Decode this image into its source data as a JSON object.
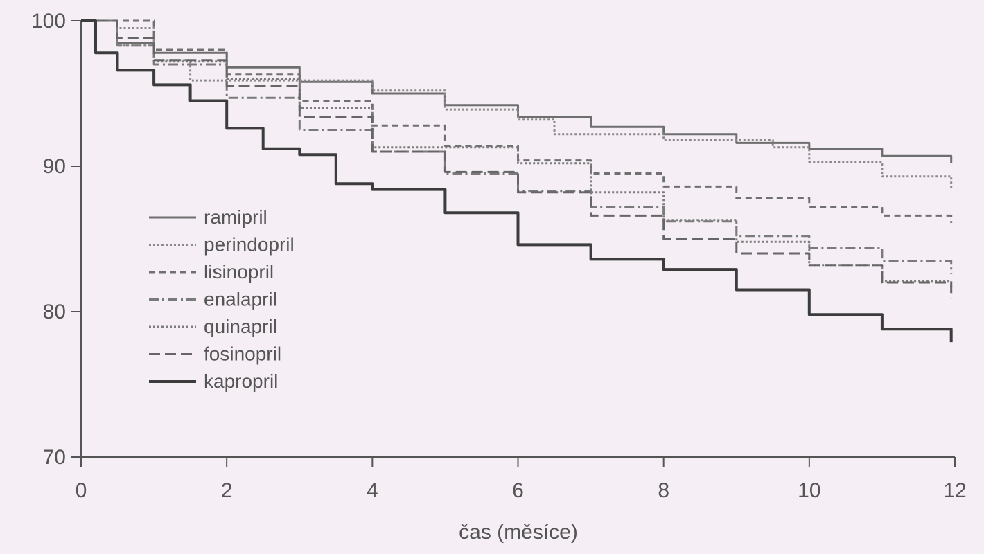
{
  "chart_data": {
    "type": "line",
    "title": "",
    "xlabel": "čas (měsíce)",
    "ylabel": "",
    "xlim": [
      0,
      12
    ],
    "ylim": [
      70,
      100
    ],
    "x_ticks": [
      0,
      2,
      4,
      6,
      8,
      10,
      12
    ],
    "y_ticks": [
      70,
      80,
      90,
      100
    ],
    "x_tick_labels": [
      "0",
      "2",
      "4",
      "6",
      "8",
      "10",
      "12"
    ],
    "y_tick_labels": [
      "70",
      "80",
      "90",
      "100"
    ],
    "grid": false,
    "legend_position": "left-middle",
    "series": [
      {
        "name": "ramipril",
        "style": "solid",
        "width": 3,
        "color": "#6e6e6e",
        "x": [
          0,
          0.5,
          1,
          2,
          3,
          4,
          5,
          6,
          7,
          8,
          9,
          10,
          11,
          11.95
        ],
        "y": [
          100,
          98.5,
          97.8,
          96.8,
          95.8,
          95,
          94.2,
          93.4,
          92.7,
          92.2,
          91.6,
          91.2,
          90.7,
          90.2
        ]
      },
      {
        "name": "perindopril",
        "style": "dotted",
        "width": 3,
        "color": "#8a8a8a",
        "x": [
          0,
          0.5,
          1,
          1.5,
          2,
          3,
          4,
          5,
          6,
          6.5,
          8,
          9.5,
          10,
          11,
          11.95
        ],
        "y": [
          100,
          99.5,
          97.3,
          95.9,
          95.9,
          95.9,
          95.2,
          93.9,
          93.2,
          92.2,
          91.8,
          91.3,
          90.3,
          89.3,
          88.4
        ]
      },
      {
        "name": "lisinopril",
        "style": "dashed-short",
        "width": 3,
        "color": "#707070",
        "x": [
          0,
          1,
          2,
          3,
          4,
          5,
          6,
          7,
          8,
          9,
          10,
          11,
          11.95
        ],
        "y": [
          100,
          98,
          96.3,
          94.5,
          92.8,
          91.4,
          90.4,
          89.5,
          88.6,
          87.8,
          87.2,
          86.6,
          86.1
        ]
      },
      {
        "name": "enalapril",
        "style": "dashdot",
        "width": 3,
        "color": "#7a7a7a",
        "x": [
          0,
          0.5,
          1,
          2,
          3,
          4,
          5,
          6,
          7,
          8,
          9,
          10,
          11,
          11.95
        ],
        "y": [
          100,
          98.3,
          97,
          94.7,
          92.5,
          91,
          89.5,
          88.3,
          87.2,
          86.2,
          85.2,
          84.4,
          83.5,
          82.6
        ]
      },
      {
        "name": "quinapril",
        "style": "dotted",
        "width": 3,
        "color": "#7d7d7d",
        "x": [
          0,
          0.5,
          1,
          2,
          3,
          4,
          5,
          6,
          7,
          8,
          9,
          10,
          11,
          11.95
        ],
        "y": [
          100,
          98.3,
          97.2,
          96,
          94,
          91.3,
          91.3,
          90.2,
          88.2,
          86.3,
          84.8,
          83.2,
          82.1,
          81.6
        ]
      },
      {
        "name": "fosinopril",
        "style": "dashed",
        "width": 3,
        "color": "#666666",
        "x": [
          0,
          0.5,
          1,
          2,
          3,
          4,
          5,
          6,
          7,
          8,
          9,
          10,
          11,
          11.95
        ],
        "y": [
          100,
          98.8,
          97.3,
          95.5,
          93.4,
          91,
          89.6,
          88.2,
          86.6,
          85,
          84,
          83.2,
          82,
          80.9
        ]
      },
      {
        "name": "kapropril",
        "style": "solid",
        "width": 4,
        "color": "#3c3c3c",
        "x": [
          0,
          0.2,
          0.5,
          1,
          1.5,
          2,
          2.5,
          3,
          3.5,
          4,
          5,
          6,
          7,
          8,
          9,
          10,
          11,
          11.95
        ],
        "y": [
          100,
          97.8,
          96.6,
          95.6,
          94.5,
          92.6,
          91.2,
          90.8,
          88.8,
          88.4,
          86.8,
          84.6,
          83.6,
          82.9,
          81.5,
          79.8,
          78.8,
          77.9
        ]
      }
    ]
  }
}
